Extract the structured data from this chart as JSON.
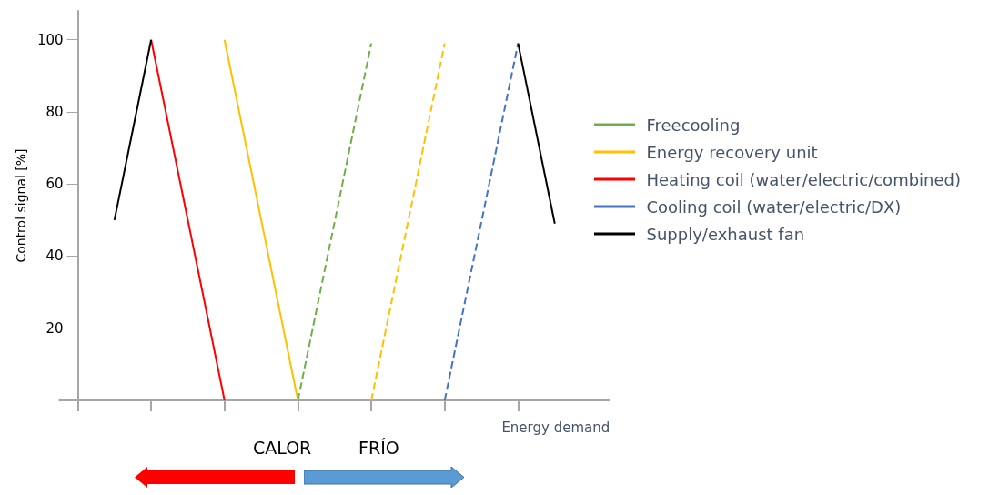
{
  "chart_data": {
    "type": "line",
    "xlabel": "Energy demand",
    "ylabel": "Control signal [%]",
    "categories": [
      null,
      null,
      null,
      null,
      null,
      null,
      null,
      null,
      null,
      null,
      null,
      null,
      null,
      null,
      null
    ],
    "ylim": [
      0,
      108
    ],
    "yticks": [
      20,
      40,
      60,
      80,
      100
    ],
    "tick_labels": "y",
    "grid": false,
    "legend": "right",
    "marker": "none",
    "series": [
      {
        "name": "Freecooling",
        "color": "#70ad47",
        "line_style": "dashed",
        "values": [
          null,
          null,
          null,
          null,
          null,
          null,
          0,
          null,
          99,
          null,
          null,
          null,
          null,
          null,
          null
        ]
      },
      {
        "name": "Energy recovery unit",
        "color": "#ffc000",
        "line_style": "solid",
        "values": [
          null,
          null,
          null,
          null,
          100,
          null,
          0,
          null,
          null,
          null,
          null,
          null,
          null,
          null,
          null
        ]
      },
      {
        "color": "#ffc000",
        "line_style": "dashed",
        "values": [
          null,
          null,
          null,
          null,
          null,
          null,
          null,
          null,
          0,
          null,
          99,
          null,
          null,
          null,
          null
        ]
      },
      {
        "name": "Heating coil (water/electric/combined)",
        "color": "#ff0000",
        "line_style": "solid",
        "values": [
          null,
          null,
          100,
          null,
          0,
          null,
          null,
          null,
          null,
          null,
          null,
          null,
          null,
          null,
          null
        ]
      },
      {
        "name": "Cooling coil (water/electric/DX)",
        "color": "#4472c4",
        "line_style": "dashed",
        "values": [
          null,
          null,
          null,
          null,
          null,
          null,
          null,
          null,
          null,
          null,
          0,
          null,
          99,
          null,
          null
        ]
      },
      {
        "name": "Supply/exhaust fan",
        "color": "#000000",
        "line_style": "solid",
        "values": [
          null,
          50,
          100,
          null,
          null,
          null,
          null,
          null,
          null,
          null,
          null,
          null,
          null,
          null,
          null
        ]
      },
      {
        "color": "#000000",
        "line_style": "solid",
        "values": [
          null,
          null,
          null,
          null,
          null,
          null,
          null,
          null,
          null,
          null,
          null,
          null,
          99,
          49,
          null
        ]
      }
    ],
    "annotations": [
      "CALOR",
      "FRÍO"
    ]
  }
}
